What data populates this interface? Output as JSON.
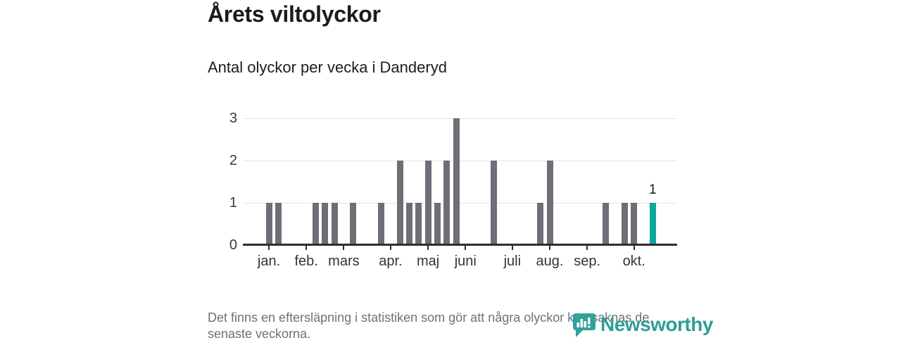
{
  "header": {
    "title": "Årets viltolyckor",
    "subtitle": "Antal olyckor per vecka i Danderyd"
  },
  "footer": {
    "note": "Det finns en eftersläpning i statistiken som gör att några olyckor kan saknas de senaste veckorna.",
    "note_lines": [
      "Det finns en eftersläpning i statistiken som gör att några olyckor kan saknas de",
      "senaste veckorna."
    ]
  },
  "brand": {
    "name": "Newsworthy",
    "icon": "bar-chart-speech-bubble-icon",
    "color": "#2f9d97"
  },
  "chart_data": {
    "type": "bar",
    "title": "Årets viltolyckor",
    "subtitle": "Antal olyckor per vecka i Danderyd",
    "xlabel": "",
    "ylabel": "",
    "x_unit": "week",
    "x": [
      1,
      2,
      3,
      4,
      5,
      6,
      7,
      8,
      9,
      10,
      11,
      12,
      13,
      14,
      15,
      16,
      17,
      18,
      19,
      20,
      21,
      22,
      23,
      24,
      25,
      26,
      27,
      28,
      29,
      30,
      31,
      32,
      33,
      34,
      35,
      36,
      37,
      38,
      39,
      40,
      41,
      42
    ],
    "values": [
      1,
      1,
      0,
      0,
      0,
      1,
      1,
      1,
      0,
      1,
      0,
      0,
      1,
      0,
      2,
      1,
      1,
      2,
      1,
      2,
      3,
      0,
      0,
      0,
      2,
      0,
      0,
      0,
      0,
      1,
      2,
      0,
      0,
      0,
      0,
      0,
      1,
      0,
      1,
      1,
      0,
      1
    ],
    "ylim": [
      0,
      3
    ],
    "yticks": [
      0,
      1,
      2,
      3
    ],
    "grid": "horizontal",
    "legend": null,
    "month_ticks": [
      {
        "label": "jan.",
        "week": 1
      },
      {
        "label": "feb.",
        "week": 5
      },
      {
        "label": "mars",
        "week": 9
      },
      {
        "label": "apr.",
        "week": 14
      },
      {
        "label": "maj",
        "week": 18
      },
      {
        "label": "juni",
        "week": 22
      },
      {
        "label": "juli",
        "week": 27
      },
      {
        "label": "aug.",
        "week": 31
      },
      {
        "label": "sep.",
        "week": 35
      },
      {
        "label": "okt.",
        "week": 40
      }
    ],
    "highlight": {
      "week": 42,
      "value": 1,
      "label": "1"
    },
    "colors": {
      "bar": "#6e6e76",
      "highlight": "#0fa79d",
      "gridline": "#e4e4e4",
      "axis": "#2e2e2e"
    }
  }
}
